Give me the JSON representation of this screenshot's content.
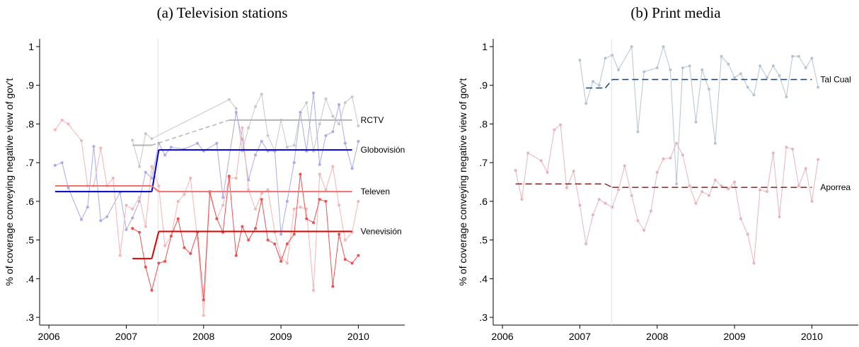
{
  "chart_data": [
    {
      "type": "line",
      "title": "(a) Television stations",
      "y_label": "% of coverage conveying negative view of gov't",
      "xlim": [
        2005.88,
        2010.6
      ],
      "xticks": [
        2006,
        2007,
        2008,
        2009,
        2010
      ],
      "ylim": [
        0.28,
        1.02
      ],
      "yticks": [
        {
          "value": 0.3,
          "label": ".3"
        },
        {
          "value": 0.4,
          "label": ".4"
        },
        {
          "value": 0.5,
          "label": ".5"
        },
        {
          "value": 0.6,
          "label": ".6"
        },
        {
          "value": 0.7,
          "label": ".7"
        },
        {
          "value": 0.8,
          "label": ".8"
        },
        {
          "value": 0.9,
          "label": ".9"
        },
        1
      ],
      "event_x": 2007.41,
      "fit_dash": false,
      "series": [
        {
          "name": "RCTV",
          "color": "#b4b4b4",
          "point_color": "#c8c8c8",
          "x": [
            2007.08,
            2007.17,
            2007.25,
            2007.33,
            2008.33,
            2008.42,
            2008.5,
            2008.58,
            2008.67,
            2008.75,
            2008.83,
            2008.92,
            2009.0,
            2009.08,
            2009.17,
            2009.25,
            2009.33,
            2009.42,
            2009.5,
            2009.58,
            2009.67,
            2009.75,
            2009.83,
            2009.92,
            2010.0
          ],
          "values": [
            0.758,
            0.69,
            0.775,
            0.762,
            0.863,
            0.84,
            0.73,
            0.79,
            0.845,
            0.877,
            0.77,
            0.73,
            0.81,
            0.74,
            0.745,
            0.83,
            0.855,
            0.73,
            0.8,
            0.865,
            0.82,
            0.8,
            0.855,
            0.87,
            0.795
          ],
          "fit_x": [
            2007.08,
            2007.33,
            2008.33,
            2009.92
          ],
          "fit_values": [
            0.745,
            0.745,
            0.81,
            0.81
          ]
        },
        {
          "name": "Globovisión",
          "color": "#0000d0",
          "point_color": "#aaaaee",
          "x": [
            2006.08,
            2006.17,
            2006.25,
            2006.42,
            2006.5,
            2006.58,
            2006.67,
            2006.75,
            2006.92,
            2007.0,
            2007.08,
            2007.17,
            2007.25,
            2007.33,
            2007.42,
            2007.5,
            2007.58,
            2007.75,
            2007.92,
            2008.0,
            2008.17,
            2008.25,
            2008.42,
            2008.5,
            2008.58,
            2008.67,
            2008.75,
            2008.83,
            2008.92,
            2009.0,
            2009.08,
            2009.17,
            2009.25,
            2009.33,
            2009.42,
            2009.5,
            2009.58,
            2009.67,
            2009.75,
            2009.83,
            2009.92,
            2010.0
          ],
          "values": [
            0.693,
            0.7,
            0.635,
            0.553,
            0.585,
            0.742,
            0.55,
            0.56,
            0.623,
            0.527,
            0.557,
            0.6,
            0.675,
            0.66,
            0.75,
            0.72,
            0.74,
            0.735,
            0.75,
            0.73,
            0.75,
            0.61,
            0.83,
            0.76,
            0.655,
            0.72,
            0.755,
            0.73,
            0.73,
            0.515,
            0.6,
            0.7,
            0.83,
            0.73,
            0.88,
            0.695,
            0.77,
            0.78,
            0.85,
            0.75,
            0.685,
            0.755
          ],
          "fit_x": [
            2006.08,
            2007.33,
            2007.42,
            2009.92
          ],
          "fit_values": [
            0.625,
            0.625,
            0.733,
            0.733
          ]
        },
        {
          "name": "Televen",
          "color": "#f07070",
          "point_color": "#f6b4b4",
          "x": [
            2006.08,
            2006.17,
            2006.25,
            2006.42,
            2006.5,
            2006.58,
            2006.67,
            2006.75,
            2006.83,
            2006.92,
            2007.0,
            2007.08,
            2007.17,
            2007.25,
            2007.33,
            2007.42,
            2007.5,
            2007.58,
            2007.67,
            2007.75,
            2007.83,
            2007.92,
            2008.0,
            2008.08,
            2008.17,
            2008.25,
            2008.33,
            2008.42,
            2008.5,
            2008.58,
            2008.67,
            2008.75,
            2008.83,
            2008.92,
            2009.0,
            2009.08,
            2009.17,
            2009.25,
            2009.33,
            2009.42,
            2009.5,
            2009.58,
            2009.67,
            2009.75,
            2009.83,
            2009.92,
            2010.0
          ],
          "values": [
            0.785,
            0.81,
            0.8,
            0.757,
            0.64,
            0.64,
            0.738,
            0.64,
            0.66,
            0.46,
            0.59,
            0.58,
            0.61,
            0.535,
            0.69,
            0.64,
            0.485,
            0.51,
            0.6,
            0.618,
            0.66,
            0.505,
            0.305,
            0.62,
            0.555,
            0.59,
            0.66,
            0.66,
            0.79,
            0.63,
            0.58,
            0.62,
            0.63,
            0.52,
            0.455,
            0.44,
            0.58,
            0.585,
            0.58,
            0.37,
            0.67,
            0.63,
            0.69,
            0.59,
            0.5,
            0.52,
            0.6
          ],
          "fit_x": [
            2006.08,
            2007.33,
            2007.42,
            2009.92
          ],
          "fit_values": [
            0.64,
            0.64,
            0.625,
            0.625
          ]
        },
        {
          "name": "Venevisión",
          "color": "#e00000",
          "point_color": "#ee5050",
          "x": [
            2007.08,
            2007.17,
            2007.25,
            2007.33,
            2007.42,
            2007.5,
            2007.58,
            2007.67,
            2007.75,
            2007.83,
            2007.92,
            2008.0,
            2008.08,
            2008.17,
            2008.25,
            2008.33,
            2008.42,
            2008.5,
            2008.58,
            2008.67,
            2008.75,
            2008.83,
            2008.92,
            2009.0,
            2009.08,
            2009.17,
            2009.25,
            2009.33,
            2009.42,
            2009.5,
            2009.58,
            2009.67,
            2009.75,
            2009.83,
            2009.92,
            2010.0
          ],
          "values": [
            0.53,
            0.52,
            0.43,
            0.37,
            0.44,
            0.445,
            0.51,
            0.555,
            0.48,
            0.465,
            0.52,
            0.345,
            0.625,
            0.555,
            0.52,
            0.665,
            0.46,
            0.535,
            0.5,
            0.53,
            0.605,
            0.5,
            0.49,
            0.445,
            0.49,
            0.515,
            0.67,
            0.555,
            0.545,
            0.605,
            0.6,
            0.38,
            0.515,
            0.45,
            0.44,
            0.46
          ],
          "fit_x": [
            2007.08,
            2007.33,
            2007.42,
            2009.92
          ],
          "fit_values": [
            0.452,
            0.452,
            0.522,
            0.522
          ]
        }
      ]
    },
    {
      "type": "line",
      "title": "(b) Print media",
      "y_label": "% of coverage conveying negative view of gov't",
      "xlim": [
        2005.88,
        2010.6
      ],
      "xticks": [
        2006,
        2007,
        2008,
        2009,
        2010
      ],
      "ylim": [
        0.28,
        1.02
      ],
      "yticks": [
        {
          "value": 0.3,
          "label": ".3"
        },
        {
          "value": 0.4,
          "label": ".4"
        },
        {
          "value": 0.5,
          "label": ".5"
        },
        {
          "value": 0.6,
          "label": ".6"
        },
        {
          "value": 0.7,
          "label": ".7"
        },
        {
          "value": 0.8,
          "label": ".8"
        },
        {
          "value": 0.9,
          "label": ".9"
        },
        1
      ],
      "event_x": 2007.41,
      "fit_dash": true,
      "series": [
        {
          "name": "Tal Cual",
          "color": "#1f3f66",
          "point_color": "#b4c4d4",
          "x": [
            2007.0,
            2007.08,
            2007.17,
            2007.25,
            2007.33,
            2007.42,
            2007.5,
            2007.67,
            2007.75,
            2007.83,
            2008.0,
            2008.08,
            2008.17,
            2008.25,
            2008.33,
            2008.42,
            2008.5,
            2008.58,
            2008.67,
            2008.75,
            2008.83,
            2008.92,
            2009.0,
            2009.08,
            2009.17,
            2009.25,
            2009.33,
            2009.42,
            2009.5,
            2009.58,
            2009.67,
            2009.75,
            2009.83,
            2009.92,
            2010.0,
            2010.08
          ],
          "values": [
            0.965,
            0.853,
            0.91,
            0.9,
            0.97,
            0.978,
            0.94,
            1.0,
            0.78,
            0.935,
            0.945,
            1.0,
            0.94,
            0.645,
            0.945,
            0.95,
            0.805,
            0.94,
            0.89,
            0.75,
            0.975,
            0.955,
            0.92,
            0.93,
            0.895,
            0.875,
            0.95,
            0.92,
            0.95,
            0.925,
            0.87,
            0.975,
            0.975,
            0.945,
            0.97,
            0.895
          ],
          "fit_x": [
            2007.08,
            2007.33,
            2007.42,
            2010.0
          ],
          "fit_values": [
            0.893,
            0.893,
            0.915,
            0.915
          ]
        },
        {
          "name": "Aporrea",
          "color": "#8b2323",
          "point_color": "#e8b4bc",
          "x": [
            2006.17,
            2006.25,
            2006.33,
            2006.5,
            2006.58,
            2006.67,
            2006.75,
            2006.83,
            2006.92,
            2007.0,
            2007.08,
            2007.17,
            2007.25,
            2007.33,
            2007.42,
            2007.5,
            2007.58,
            2007.67,
            2007.75,
            2007.83,
            2007.92,
            2008.0,
            2008.08,
            2008.17,
            2008.25,
            2008.33,
            2008.42,
            2008.5,
            2008.58,
            2008.67,
            2008.75,
            2008.83,
            2008.92,
            2009.0,
            2009.08,
            2009.17,
            2009.25,
            2009.33,
            2009.42,
            2009.5,
            2009.58,
            2009.67,
            2009.75,
            2009.83,
            2009.92,
            2010.0,
            2010.08
          ],
          "values": [
            0.68,
            0.605,
            0.725,
            0.705,
            0.675,
            0.785,
            0.798,
            0.635,
            0.678,
            0.59,
            0.49,
            0.565,
            0.605,
            0.595,
            0.585,
            0.63,
            0.692,
            0.615,
            0.55,
            0.525,
            0.575,
            0.675,
            0.71,
            0.712,
            0.75,
            0.72,
            0.64,
            0.595,
            0.625,
            0.615,
            0.655,
            0.64,
            0.632,
            0.65,
            0.555,
            0.515,
            0.44,
            0.63,
            0.625,
            0.725,
            0.56,
            0.74,
            0.735,
            0.64,
            0.685,
            0.6,
            0.708
          ],
          "fit_x": [
            2006.17,
            2007.33,
            2007.42,
            2010.0
          ],
          "fit_values": [
            0.645,
            0.645,
            0.636,
            0.636
          ]
        }
      ]
    }
  ]
}
